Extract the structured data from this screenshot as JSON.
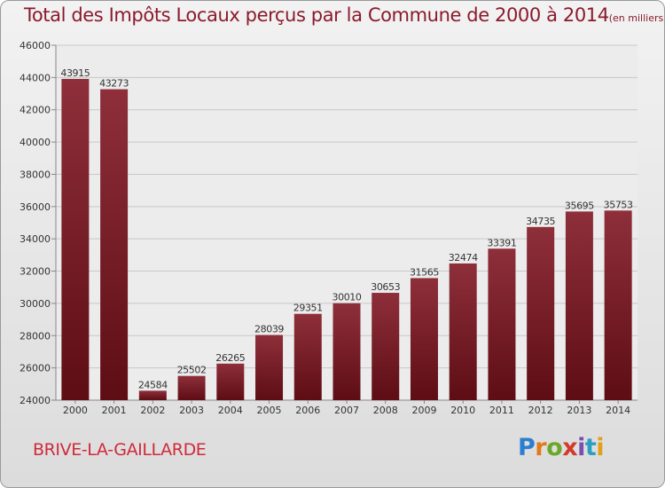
{
  "title": {
    "main": "Total des Impôts Locaux perçus par la Commune de 2000 à 2014",
    "unit": "(en milliers d'€)"
  },
  "commune": "BRIVE-LA-GAILLARDE",
  "logo": {
    "letters": [
      "P",
      "r",
      "o",
      "x",
      "i",
      "t",
      "i"
    ],
    "colors": [
      "#2a7fd0",
      "#e07a1a",
      "#6aa82a",
      "#d23a2a",
      "#7a4fb0",
      "#2a9fc0",
      "#e0a01a"
    ]
  },
  "colors": {
    "bar_top": "#8e2f3a",
    "bar_bottom": "#5e0d14",
    "grid": "#c8c8c8"
  },
  "chart_data": {
    "type": "bar",
    "title": "Total des Impôts Locaux perçus par la Commune de 2000 à 2014",
    "categories": [
      "2000",
      "2001",
      "2002",
      "2003",
      "2004",
      "2005",
      "2006",
      "2007",
      "2008",
      "2009",
      "2010",
      "2011",
      "2012",
      "2013",
      "2014"
    ],
    "values": [
      43915,
      43273,
      24584,
      25502,
      26265,
      28039,
      29351,
      30010,
      30653,
      31565,
      32474,
      33391,
      34735,
      35695,
      35753
    ],
    "ylim": [
      24000,
      46000
    ],
    "yticks": [
      24000,
      26000,
      28000,
      30000,
      32000,
      34000,
      36000,
      38000,
      40000,
      42000,
      44000,
      46000
    ],
    "grid": true,
    "data_labels": true
  }
}
